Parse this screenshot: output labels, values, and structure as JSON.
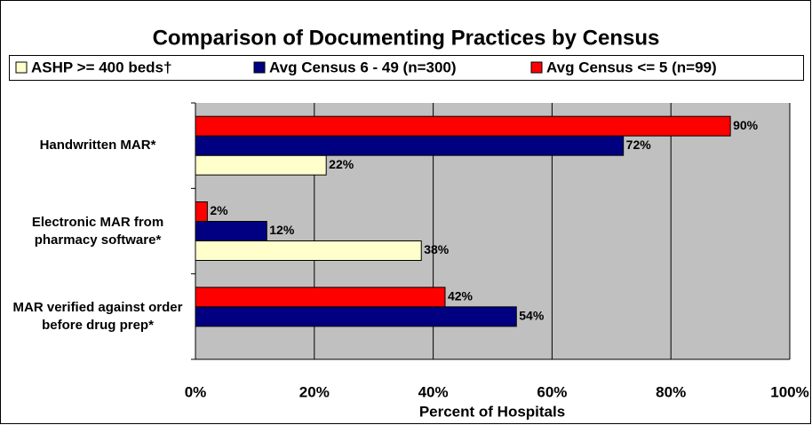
{
  "chart_data": {
    "type": "hbar",
    "title": "Comparison of Documenting Practices by Census",
    "categories": [
      "Handwritten MAR*",
      "Electronic MAR from pharmacy software*",
      "MAR verified against order before drug prep*"
    ],
    "series": [
      {
        "name": "ASHP >= 400 beds†",
        "color": "#ffffcc",
        "values": [
          22,
          38,
          null
        ],
        "value_labels": [
          "22%",
          "38%",
          null
        ]
      },
      {
        "name": "Avg Census 6 - 49 (n=300)",
        "color": "#000080",
        "values": [
          72,
          12,
          54
        ],
        "value_labels": [
          "72%",
          "12%",
          "54%"
        ]
      },
      {
        "name": "Avg Census <= 5 (n=99)",
        "color": "#ff0000",
        "values": [
          90,
          2,
          42
        ],
        "value_labels": [
          "90%",
          "2%",
          "42%"
        ]
      }
    ],
    "xlabel": "Percent of Hospitals",
    "xlim": [
      0,
      100
    ],
    "xticks": [
      {
        "value": 0,
        "label": "0%"
      },
      {
        "value": 20,
        "label": "20%"
      },
      {
        "value": 40,
        "label": "40%"
      },
      {
        "value": 60,
        "label": "60%"
      },
      {
        "value": 80,
        "label": "80%"
      },
      {
        "value": 100,
        "label": "100%"
      }
    ],
    "grid": true,
    "legend": "top"
  }
}
